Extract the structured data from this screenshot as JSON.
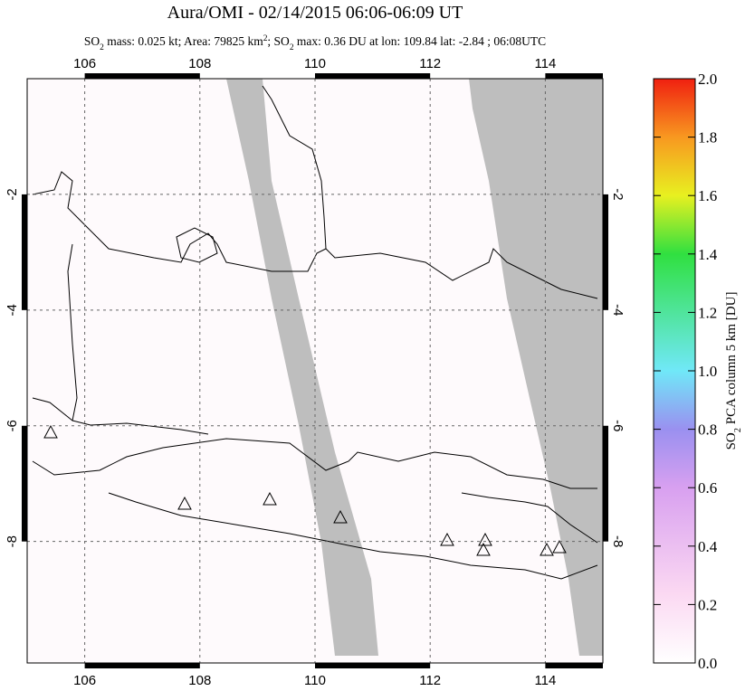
{
  "chart_data": {
    "type": "map",
    "title": "Aura/OMI - 02/14/2015 06:06-06:09 UT",
    "subtitle": [
      {
        "text": "SO"
      },
      {
        "sub": "2"
      },
      {
        "text": " mass: 0.025 kt; Area: 79825 km"
      },
      {
        "sup": "2"
      },
      {
        "text": "; SO"
      },
      {
        "sub": "2"
      },
      {
        "text": " max: 0.36 DU at lon: 109.84 lat: -2.84 ; 06:08UTC"
      }
    ],
    "xlim": [
      105,
      115
    ],
    "ylim": [
      -10.1,
      0
    ],
    "xticks": [
      106,
      108,
      110,
      112,
      114
    ],
    "yticks": [
      -2,
      -4,
      -6,
      -8
    ],
    "grid": true,
    "colorbar": {
      "label": [
        {
          "text": "SO"
        },
        {
          "sub": "2"
        },
        {
          "text": " PCA column 5 km [DU]"
        }
      ],
      "clim": [
        0,
        2
      ],
      "ticks": [
        {
          "value": 0,
          "label": "0.0"
        },
        {
          "value": 0.2,
          "label": "0.2"
        },
        {
          "value": 0.4,
          "label": "0.4"
        },
        {
          "value": 0.6,
          "label": "0.6"
        },
        {
          "value": 0.8,
          "label": "0.8"
        },
        {
          "value": 1.0,
          "label": "1.0"
        },
        {
          "value": 1.2,
          "label": "1.2"
        },
        {
          "value": 1.4,
          "label": "1.4"
        },
        {
          "value": 1.6,
          "label": "1.6"
        },
        {
          "value": 1.8,
          "label": "1.8"
        },
        {
          "value": 2.0,
          "label": "2.0"
        }
      ]
    }
  }
}
